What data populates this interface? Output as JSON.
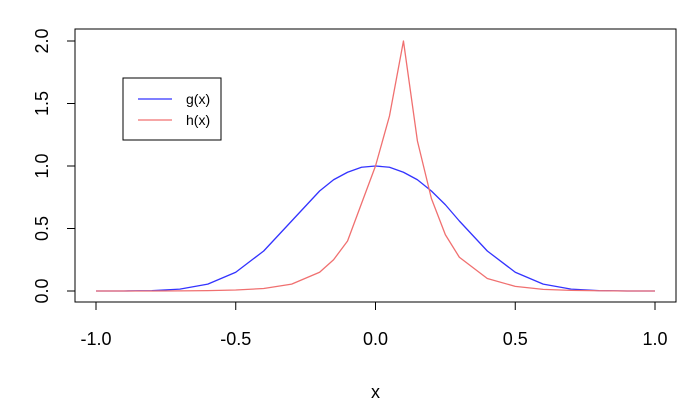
{
  "chart_data": {
    "type": "line",
    "title": "",
    "xlabel": "x",
    "ylabel": "",
    "xlim": [
      -1.0,
      1.0
    ],
    "ylim": [
      0.0,
      2.0
    ],
    "x_ticks": [
      -1.0,
      -0.5,
      0.0,
      0.5,
      1.0
    ],
    "x_tick_labels": [
      "-1.0",
      "-0.5",
      "0.0",
      "0.5",
      "1.0"
    ],
    "y_ticks": [
      0.0,
      0.5,
      1.0,
      1.5,
      2.0
    ],
    "y_tick_labels": [
      "0.0",
      "0.5",
      "1.0",
      "1.5",
      "2.0"
    ],
    "grid": false,
    "legend_position": "top-left",
    "x": [
      -1.0,
      -0.9,
      -0.8,
      -0.7,
      -0.6,
      -0.5,
      -0.4,
      -0.3,
      -0.2,
      -0.15,
      -0.1,
      -0.05,
      0.0,
      0.05,
      0.1,
      0.15,
      0.2,
      0.25,
      0.3,
      0.4,
      0.5,
      0.6,
      0.7,
      0.8,
      0.9,
      1.0
    ],
    "series": [
      {
        "name": "g(x)",
        "color": "#3333ff",
        "values": [
          0.0,
          0.0,
          0.003,
          0.015,
          0.055,
          0.15,
          0.32,
          0.56,
          0.8,
          0.89,
          0.95,
          0.99,
          1.0,
          0.99,
          0.95,
          0.89,
          0.8,
          0.69,
          0.56,
          0.32,
          0.15,
          0.055,
          0.015,
          0.003,
          0.0,
          0.0
        ]
      },
      {
        "name": "h(x)",
        "color": "#f07070",
        "values": [
          0.0,
          0.0,
          0.0,
          0.001,
          0.003,
          0.008,
          0.02,
          0.055,
          0.15,
          0.25,
          0.4,
          0.7,
          1.0,
          1.4,
          2.0,
          1.2,
          0.74,
          0.45,
          0.27,
          0.1,
          0.037,
          0.013,
          0.005,
          0.002,
          0.0,
          0.0
        ]
      }
    ]
  }
}
